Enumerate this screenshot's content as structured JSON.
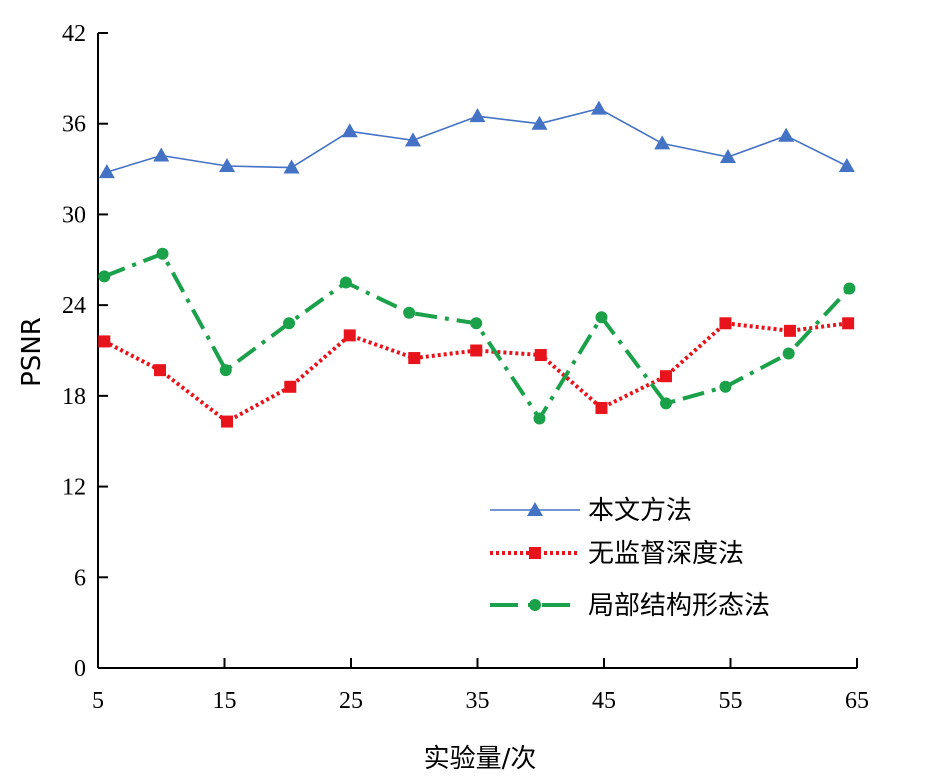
{
  "chart_data": {
    "type": "line",
    "xlabel": "实验量/次",
    "ylabel": "PSNR",
    "xlim": [
      5,
      65
    ],
    "ylim": [
      0,
      42
    ],
    "x_ticks": [
      "5",
      "15",
      "25",
      "35",
      "45",
      "55",
      "65"
    ],
    "y_ticks": [
      "0",
      "6",
      "12",
      "18",
      "24",
      "30",
      "36",
      "42"
    ],
    "grid": false,
    "legend_position": "bottom-right",
    "series": [
      {
        "name": "本文方法",
        "color": "#4472c4",
        "marker": "triangle",
        "line_style": "solid",
        "x": [
          5.7,
          10.0,
          15.2,
          20.3,
          24.9,
          29.9,
          35.0,
          39.9,
          44.6,
          49.6,
          54.8,
          59.4,
          64.2
        ],
        "y": [
          32.8,
          33.9,
          33.2,
          33.1,
          35.5,
          34.9,
          36.5,
          36.0,
          37.0,
          34.7,
          33.8,
          35.2,
          33.2
        ]
      },
      {
        "name": "无监督深度法",
        "color": "#e8141b",
        "marker": "square",
        "line_style": "dotted",
        "x": [
          5.5,
          9.9,
          15.2,
          20.2,
          24.9,
          30.0,
          34.9,
          40.0,
          44.8,
          49.9,
          54.6,
          59.7,
          64.3
        ],
        "y": [
          21.6,
          19.7,
          16.3,
          18.6,
          22.0,
          20.5,
          21.0,
          20.7,
          17.2,
          19.3,
          22.8,
          22.3,
          22.8
        ]
      },
      {
        "name": "局部结构形态法",
        "color": "#1aa14a",
        "marker": "circle",
        "line_style": "dash-dot",
        "x": [
          5.5,
          10.1,
          15.1,
          20.1,
          24.6,
          29.6,
          34.9,
          39.9,
          44.8,
          49.9,
          54.6,
          59.6,
          64.4
        ],
        "y": [
          25.9,
          27.4,
          19.7,
          22.8,
          25.5,
          23.5,
          22.8,
          16.5,
          23.2,
          17.5,
          18.6,
          20.8,
          25.1
        ]
      }
    ]
  }
}
